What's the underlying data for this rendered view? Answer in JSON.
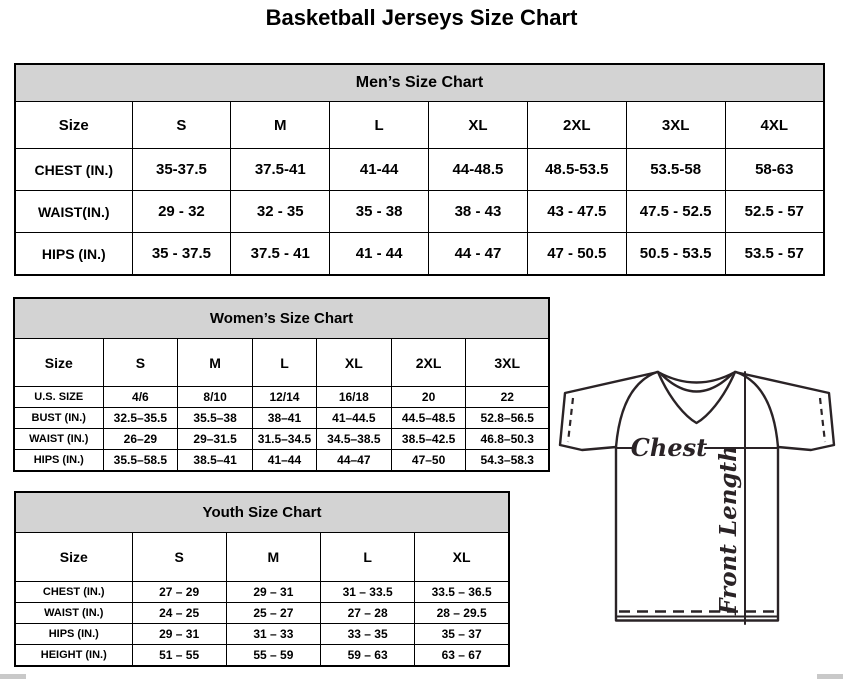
{
  "page": {
    "title": "Basketball Jerseys Size Chart"
  },
  "colors": {
    "header_band": "#d3d3d3",
    "table_border": "#000000",
    "diagram_stroke": "#2a2326",
    "scrollbar_fragment": "#c9c9c9"
  },
  "tables": [
    {
      "id": "mens",
      "title": "Men’s Size Chart",
      "columns": [
        "Size",
        "S",
        "M",
        "L",
        "XL",
        "2XL",
        "3XL",
        "4XL"
      ],
      "rows": [
        {
          "label": "CHEST (IN.)",
          "values": [
            "35-37.5",
            "37.5-41",
            "41-44",
            "44-48.5",
            "48.5-53.5",
            "53.5-58",
            "58-63"
          ]
        },
        {
          "label": "WAIST(IN.)",
          "values": [
            "29 - 32",
            "32 - 35",
            "35 - 38",
            "38 - 43",
            "43 - 47.5",
            "47.5 - 52.5",
            "52.5 - 57"
          ]
        },
        {
          "label": "HIPS (IN.)",
          "values": [
            "35 - 37.5",
            "37.5 - 41",
            "41 - 44",
            "44 - 47",
            "47 - 50.5",
            "50.5 - 53.5",
            "53.5 - 57"
          ]
        }
      ]
    },
    {
      "id": "womens",
      "title": "Women’s Size Chart",
      "columns": [
        "Size",
        "S",
        "M",
        "L",
        "XL",
        "2XL",
        "3XL"
      ],
      "rows": [
        {
          "label": "U.S. SIZE",
          "values": [
            "4/6",
            "8/10",
            "12/14",
            "16/18",
            "20",
            "22"
          ]
        },
        {
          "label": "BUST (IN.)",
          "values": [
            "32.5–35.5",
            "35.5–38",
            "38–41",
            "41–44.5",
            "44.5–48.5",
            "52.8–56.5"
          ]
        },
        {
          "label": "WAIST (IN.)",
          "values": [
            "26–29",
            "29–31.5",
            "31.5–34.5",
            "34.5–38.5",
            "38.5–42.5",
            "46.8–50.3"
          ]
        },
        {
          "label": "HIPS (IN.)",
          "values": [
            "35.5–58.5",
            "38.5–41",
            "41–44",
            "44–47",
            "47–50",
            "54.3–58.3"
          ]
        }
      ]
    },
    {
      "id": "youth",
      "title": "Youth Size Chart",
      "columns": [
        "Size",
        "S",
        "M",
        "L",
        "XL"
      ],
      "rows": [
        {
          "label": "CHEST (IN.)",
          "values": [
            "27 – 29",
            "29 – 31",
            "31 – 33.5",
            "33.5 – 36.5"
          ]
        },
        {
          "label": "WAIST (IN.)",
          "values": [
            "24 – 25",
            "25 – 27",
            "27 – 28",
            "28 – 29.5"
          ]
        },
        {
          "label": "HIPS (IN.)",
          "values": [
            "29 – 31",
            "31 – 33",
            "33 – 35",
            "35 – 37"
          ]
        },
        {
          "label": "HEIGHT (IN.)",
          "values": [
            "51 – 55",
            "55 – 59",
            "59 – 63",
            "63 – 67"
          ]
        }
      ]
    }
  ],
  "diagram": {
    "chest_label": "Chest",
    "front_length_label": "Front Length"
  }
}
